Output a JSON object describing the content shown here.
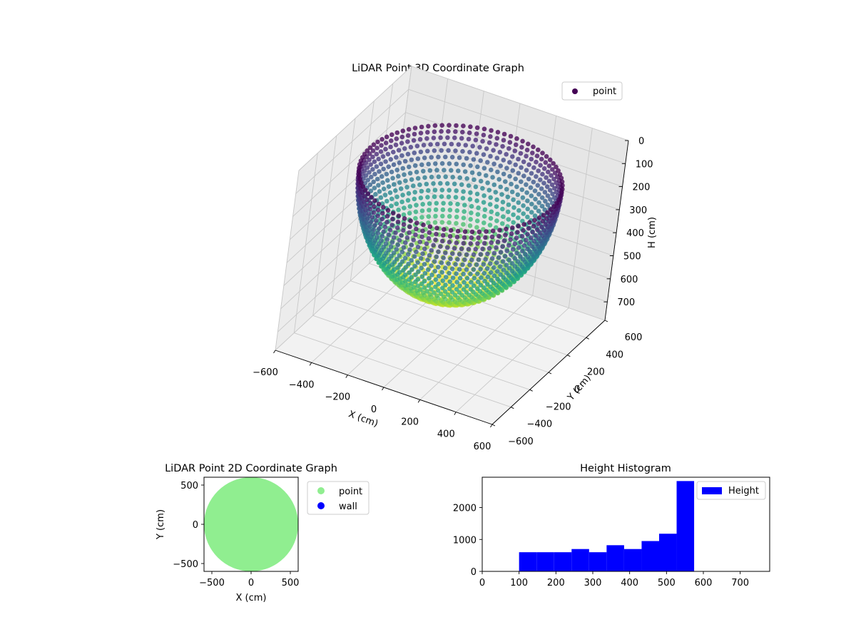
{
  "chart_data": [
    {
      "type": "scatter",
      "projection": "3d",
      "title": "LiDAR Point 3D Coordinate Graph",
      "xlabel": "X (cm)",
      "ylabel": "Y (cm)",
      "zlabel": "H (cm)",
      "xlim": [
        -600,
        600
      ],
      "ylim": [
        -600,
        600
      ],
      "zlim": [
        780,
        0
      ],
      "z_axis_inverted": true,
      "xticks": [
        -600,
        -400,
        -200,
        0,
        200,
        400,
        600
      ],
      "yticks": [
        -600,
        -400,
        -200,
        0,
        200,
        400,
        600
      ],
      "zticks": [
        0,
        100,
        200,
        300,
        400,
        500,
        600,
        700
      ],
      "grid": true,
      "colormap": "viridis",
      "legend_position": "top-right",
      "series": [
        {
          "name": "point",
          "color": "#440154",
          "shape": "hemisphere",
          "radius": 500,
          "rim_height": 100,
          "bottom_height": 600,
          "note_color_by_height": true
        }
      ]
    },
    {
      "type": "scatter",
      "title": "LiDAR Point 2D Coordinate Graph",
      "xlabel": "X (cm)",
      "ylabel": "Y (cm)",
      "xlim": [
        -600,
        600
      ],
      "ylim": [
        -600,
        600
      ],
      "xticks": [
        -500,
        0,
        500
      ],
      "yticks": [
        -500,
        0,
        500
      ],
      "legend_position": "outside-right",
      "series": [
        {
          "name": "point",
          "color": "#90ee90",
          "shape": "disk",
          "radius": 600
        },
        {
          "name": "wall",
          "color": "#0000ff"
        }
      ]
    },
    {
      "type": "bar",
      "histogram": true,
      "title": "Height Histogram",
      "xlim": [
        0,
        780
      ],
      "ylim": [
        0,
        2950
      ],
      "xticks": [
        0,
        100,
        200,
        300,
        400,
        500,
        600,
        700
      ],
      "yticks": [
        0,
        1000,
        2000
      ],
      "bin_edges": [
        100,
        147.5,
        195,
        242.5,
        290,
        337.5,
        385,
        432.5,
        480,
        527.5,
        575
      ],
      "values": [
        600,
        600,
        600,
        700,
        600,
        820,
        700,
        950,
        1180,
        2830
      ],
      "legend_position": "top-right",
      "series": [
        {
          "name": "Height",
          "color": "#0000ff"
        }
      ]
    }
  ]
}
